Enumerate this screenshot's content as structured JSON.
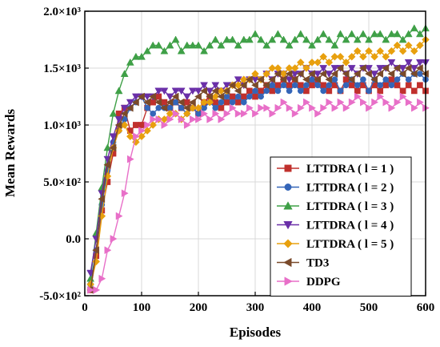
{
  "chart_data": {
    "type": "line",
    "xlabel": "Episodes",
    "ylabel": "Mean Rewards",
    "xlim": [
      0,
      600
    ],
    "ylim": [
      -500,
      2000
    ],
    "grid": true,
    "legend_position": "bottom-right",
    "x_ticks": [
      {
        "value": 0,
        "label": "0"
      },
      {
        "value": 100,
        "label": "100"
      },
      {
        "value": 200,
        "label": "200"
      },
      {
        "value": 300,
        "label": "300"
      },
      {
        "value": 400,
        "label": "400"
      },
      {
        "value": 500,
        "label": "500"
      },
      {
        "value": 600,
        "label": "600"
      }
    ],
    "y_ticks": [
      {
        "value": -500,
        "label": "-5.0×10²"
      },
      {
        "value": 0,
        "label": "0.0"
      },
      {
        "value": 500,
        "label": "5.0×10²"
      },
      {
        "value": 1000,
        "label": "1.0×10³"
      },
      {
        "value": 1500,
        "label": "1.5×10³"
      },
      {
        "value": 2000,
        "label": "2.0×10³"
      }
    ],
    "x": [
      10,
      20,
      30,
      40,
      50,
      60,
      70,
      80,
      90,
      100,
      110,
      120,
      130,
      140,
      150,
      160,
      170,
      180,
      190,
      200,
      210,
      220,
      230,
      240,
      250,
      260,
      270,
      280,
      290,
      300,
      310,
      320,
      330,
      340,
      350,
      360,
      370,
      380,
      390,
      400,
      410,
      420,
      430,
      440,
      450,
      460,
      470,
      480,
      490,
      500,
      510,
      520,
      530,
      540,
      550,
      560,
      570,
      580,
      590,
      600
    ],
    "series": [
      {
        "name": "LTTDRA ( l = 1 )",
        "color": "#c0302d",
        "marker": "square",
        "values": [
          -450,
          -150,
          250,
          500,
          750,
          1100,
          1150,
          950,
          1000,
          1000,
          1150,
          1200,
          1250,
          1200,
          1150,
          1200,
          1150,
          1200,
          1150,
          1100,
          1200,
          1250,
          1200,
          1150,
          1200,
          1250,
          1200,
          1250,
          1300,
          1250,
          1300,
          1350,
          1300,
          1350,
          1400,
          1350,
          1400,
          1350,
          1300,
          1350,
          1400,
          1350,
          1300,
          1350,
          1300,
          1400,
          1350,
          1300,
          1350,
          1300,
          1350,
          1300,
          1350,
          1400,
          1350,
          1300,
          1350,
          1300,
          1350,
          1300
        ]
      },
      {
        "name": "LTTDRA ( l = 2 )",
        "color": "#3465b8",
        "marker": "circle",
        "values": [
          -400,
          -100,
          300,
          600,
          850,
          950,
          1050,
          1150,
          1200,
          1250,
          1150,
          1100,
          1150,
          1150,
          1150,
          1200,
          1150,
          1100,
          1150,
          1100,
          1150,
          1200,
          1150,
          1200,
          1250,
          1200,
          1250,
          1200,
          1250,
          1300,
          1250,
          1300,
          1350,
          1300,
          1350,
          1300,
          1350,
          1300,
          1350,
          1400,
          1350,
          1300,
          1350,
          1400,
          1300,
          1350,
          1400,
          1350,
          1400,
          1300,
          1400,
          1350,
          1400,
          1350,
          1400,
          1450,
          1400,
          1450,
          1450,
          1400
        ]
      },
      {
        "name": "LTTDRA ( l = 3 )",
        "color": "#3fa047",
        "marker": "triangle-up",
        "values": [
          -350,
          50,
          450,
          800,
          1100,
          1300,
          1450,
          1550,
          1600,
          1600,
          1650,
          1700,
          1700,
          1650,
          1700,
          1750,
          1650,
          1700,
          1700,
          1700,
          1650,
          1700,
          1750,
          1700,
          1750,
          1750,
          1700,
          1750,
          1750,
          1800,
          1750,
          1700,
          1750,
          1800,
          1750,
          1700,
          1750,
          1800,
          1750,
          1700,
          1750,
          1800,
          1750,
          1700,
          1800,
          1750,
          1800,
          1750,
          1800,
          1750,
          1800,
          1800,
          1750,
          1800,
          1800,
          1750,
          1800,
          1850,
          1800,
          1850
        ]
      },
      {
        "name": "LTTDRA ( l = 4 )",
        "color": "#6a2fa8",
        "marker": "triangle-down",
        "values": [
          -300,
          0,
          400,
          700,
          900,
          1050,
          1150,
          1200,
          1250,
          1250,
          1250,
          1250,
          1300,
          1300,
          1250,
          1300,
          1300,
          1250,
          1300,
          1300,
          1350,
          1300,
          1350,
          1300,
          1350,
          1350,
          1400,
          1350,
          1400,
          1400,
          1400,
          1450,
          1400,
          1450,
          1450,
          1400,
          1450,
          1450,
          1500,
          1450,
          1450,
          1500,
          1450,
          1500,
          1500,
          1450,
          1500,
          1450,
          1500,
          1500,
          1450,
          1500,
          1500,
          1550,
          1500,
          1500,
          1550,
          1500,
          1550,
          1550
        ]
      },
      {
        "name": "LTTDRA ( l = 5 )",
        "color": "#e8a00e",
        "marker": "diamond",
        "values": [
          -400,
          -200,
          200,
          550,
          800,
          950,
          1000,
          900,
          850,
          900,
          950,
          1000,
          1050,
          1050,
          1100,
          1100,
          1050,
          1100,
          1150,
          1150,
          1200,
          1200,
          1250,
          1300,
          1300,
          1350,
          1350,
          1400,
          1400,
          1450,
          1400,
          1450,
          1500,
          1500,
          1450,
          1500,
          1500,
          1550,
          1500,
          1550,
          1550,
          1600,
          1550,
          1600,
          1600,
          1550,
          1600,
          1650,
          1600,
          1650,
          1600,
          1650,
          1600,
          1650,
          1700,
          1650,
          1700,
          1650,
          1700,
          1750
        ]
      },
      {
        "name": "TD3",
        "color": "#7a4a2a",
        "marker": "triangle-left",
        "values": [
          -450,
          -100,
          350,
          650,
          800,
          1000,
          1100,
          1150,
          1200,
          1250,
          1200,
          1250,
          1200,
          1150,
          1200,
          1250,
          1200,
          1150,
          1200,
          1250,
          1300,
          1250,
          1300,
          1250,
          1300,
          1350,
          1300,
          1350,
          1400,
          1350,
          1400,
          1350,
          1400,
          1450,
          1400,
          1450,
          1400,
          1450,
          1400,
          1450,
          1400,
          1450,
          1400,
          1450,
          1500,
          1450,
          1400,
          1450,
          1500,
          1450,
          1400,
          1450,
          1500,
          1450,
          1500,
          1450,
          1500,
          1450,
          1500,
          1450
        ]
      },
      {
        "name": "DDPG",
        "color": "#e86fc8",
        "marker": "triangle-right",
        "values": [
          -450,
          -450,
          -350,
          -100,
          0,
          200,
          400,
          700,
          900,
          950,
          1000,
          1050,
          1050,
          1000,
          1050,
          1100,
          1050,
          1000,
          1050,
          1050,
          1100,
          1050,
          1100,
          1050,
          1100,
          1150,
          1100,
          1100,
          1150,
          1100,
          1150,
          1150,
          1100,
          1150,
          1200,
          1150,
          1100,
          1150,
          1200,
          1150,
          1100,
          1150,
          1200,
          1150,
          1200,
          1150,
          1200,
          1250,
          1200,
          1150,
          1200,
          1250,
          1200,
          1150,
          1200,
          1250,
          1200,
          1150,
          1200,
          1150
        ]
      }
    ]
  }
}
